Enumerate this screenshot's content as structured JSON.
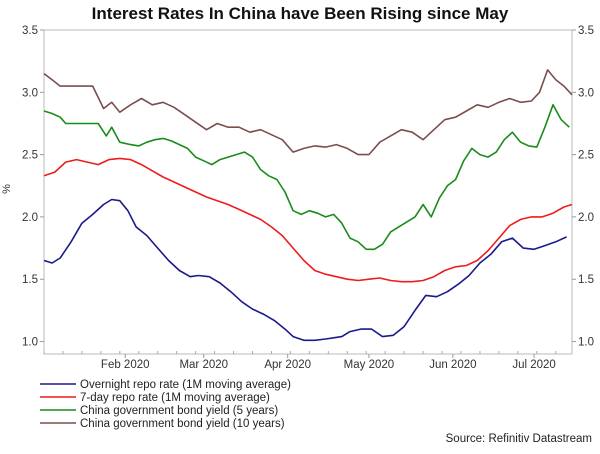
{
  "chart_data": {
    "type": "line",
    "title": "Interest Rates In China have Been Rising since May",
    "ylabel": "%",
    "ylim": [
      0.9,
      3.5
    ],
    "yticks": [
      1.0,
      1.5,
      2.0,
      2.5,
      3.0,
      3.5
    ],
    "ytick_labels": [
      "1.0",
      "1.5",
      "2.0",
      "2.5",
      "3.0",
      "3.5"
    ],
    "xlim": [
      "2020-01-02",
      "2020-07-15"
    ],
    "xtick_labels": [
      {
        "label": "Feb 2020",
        "date": "2020-02-01"
      },
      {
        "label": "Mar 2020",
        "date": "2020-03-01"
      },
      {
        "label": "Apr 2020",
        "date": "2020-04-01"
      },
      {
        "label": "May 2020",
        "date": "2020-05-01"
      },
      {
        "label": "Jun 2020",
        "date": "2020-06-01"
      },
      {
        "label": "Jul 2020",
        "date": "2020-07-01"
      }
    ],
    "grid": false,
    "source": "Source: Refinitiv Datastream",
    "series": [
      {
        "name": "Overnight repo rate (1M moving average)",
        "color": "#1a1a8c",
        "x": [
          "2020-01-02",
          "2020-01-05",
          "2020-01-08",
          "2020-01-12",
          "2020-01-16",
          "2020-01-20",
          "2020-01-24",
          "2020-01-27",
          "2020-01-30",
          "2020-02-02",
          "2020-02-05",
          "2020-02-09",
          "2020-02-13",
          "2020-02-17",
          "2020-02-21",
          "2020-02-25",
          "2020-02-28",
          "2020-03-03",
          "2020-03-07",
          "2020-03-11",
          "2020-03-15",
          "2020-03-19",
          "2020-03-23",
          "2020-03-27",
          "2020-03-31",
          "2020-04-03",
          "2020-04-07",
          "2020-04-11",
          "2020-04-15",
          "2020-04-18",
          "2020-04-21",
          "2020-04-24",
          "2020-04-28",
          "2020-05-02",
          "2020-05-06",
          "2020-05-10",
          "2020-05-14",
          "2020-05-18",
          "2020-05-22",
          "2020-05-26",
          "2020-05-30",
          "2020-06-03",
          "2020-06-07",
          "2020-06-11",
          "2020-06-15",
          "2020-06-19",
          "2020-06-23",
          "2020-06-27",
          "2020-07-01",
          "2020-07-05",
          "2020-07-09",
          "2020-07-13"
        ],
        "y": [
          1.65,
          1.63,
          1.67,
          1.8,
          1.95,
          2.02,
          2.1,
          2.14,
          2.13,
          2.05,
          1.92,
          1.85,
          1.75,
          1.65,
          1.57,
          1.52,
          1.53,
          1.52,
          1.47,
          1.4,
          1.32,
          1.26,
          1.22,
          1.17,
          1.1,
          1.04,
          1.01,
          1.01,
          1.02,
          1.03,
          1.04,
          1.08,
          1.1,
          1.1,
          1.04,
          1.05,
          1.12,
          1.25,
          1.37,
          1.36,
          1.4,
          1.46,
          1.53,
          1.63,
          1.7,
          1.8,
          1.83,
          1.75,
          1.74,
          1.77,
          1.8,
          1.84
        ]
      },
      {
        "name": "7-day repo rate (1M moving average)",
        "color": "#ee1c1c",
        "x": [
          "2020-01-02",
          "2020-01-06",
          "2020-01-10",
          "2020-01-14",
          "2020-01-18",
          "2020-01-22",
          "2020-01-26",
          "2020-01-30",
          "2020-02-03",
          "2020-02-07",
          "2020-02-11",
          "2020-02-15",
          "2020-02-19",
          "2020-02-23",
          "2020-02-27",
          "2020-03-02",
          "2020-03-06",
          "2020-03-10",
          "2020-03-14",
          "2020-03-18",
          "2020-03-22",
          "2020-03-26",
          "2020-03-30",
          "2020-04-03",
          "2020-04-07",
          "2020-04-11",
          "2020-04-15",
          "2020-04-19",
          "2020-04-23",
          "2020-04-27",
          "2020-05-01",
          "2020-05-05",
          "2020-05-09",
          "2020-05-13",
          "2020-05-17",
          "2020-05-21",
          "2020-05-25",
          "2020-05-29",
          "2020-06-02",
          "2020-06-06",
          "2020-06-10",
          "2020-06-14",
          "2020-06-18",
          "2020-06-22",
          "2020-06-26",
          "2020-06-30",
          "2020-07-04",
          "2020-07-08",
          "2020-07-12",
          "2020-07-15"
        ],
        "y": [
          2.33,
          2.36,
          2.44,
          2.46,
          2.44,
          2.42,
          2.46,
          2.47,
          2.46,
          2.42,
          2.37,
          2.32,
          2.28,
          2.24,
          2.2,
          2.16,
          2.13,
          2.1,
          2.06,
          2.02,
          1.98,
          1.92,
          1.85,
          1.75,
          1.65,
          1.57,
          1.54,
          1.52,
          1.5,
          1.49,
          1.5,
          1.51,
          1.49,
          1.48,
          1.48,
          1.49,
          1.52,
          1.57,
          1.6,
          1.61,
          1.65,
          1.73,
          1.83,
          1.93,
          1.98,
          2.0,
          2.0,
          2.03,
          2.08,
          2.1
        ]
      },
      {
        "name": "China government bond yield (5 years)",
        "color": "#1a8c1a",
        "x": [
          "2020-01-02",
          "2020-01-05",
          "2020-01-08",
          "2020-01-10",
          "2020-01-14",
          "2020-01-18",
          "2020-01-22",
          "2020-01-25",
          "2020-01-27",
          "2020-01-30",
          "2020-02-03",
          "2020-02-06",
          "2020-02-09",
          "2020-02-12",
          "2020-02-15",
          "2020-02-18",
          "2020-02-21",
          "2020-02-24",
          "2020-02-27",
          "2020-03-01",
          "2020-03-04",
          "2020-03-07",
          "2020-03-10",
          "2020-03-13",
          "2020-03-16",
          "2020-03-19",
          "2020-03-22",
          "2020-03-25",
          "2020-03-28",
          "2020-03-31",
          "2020-04-03",
          "2020-04-06",
          "2020-04-09",
          "2020-04-12",
          "2020-04-15",
          "2020-04-18",
          "2020-04-21",
          "2020-04-24",
          "2020-04-27",
          "2020-04-30",
          "2020-05-03",
          "2020-05-06",
          "2020-05-09",
          "2020-05-12",
          "2020-05-15",
          "2020-05-18",
          "2020-05-21",
          "2020-05-24",
          "2020-05-27",
          "2020-05-30",
          "2020-06-02",
          "2020-06-05",
          "2020-06-08",
          "2020-06-11",
          "2020-06-14",
          "2020-06-17",
          "2020-06-20",
          "2020-06-23",
          "2020-06-26",
          "2020-06-29",
          "2020-07-02",
          "2020-07-05",
          "2020-07-08",
          "2020-07-11",
          "2020-07-14"
        ],
        "y": [
          2.85,
          2.83,
          2.8,
          2.75,
          2.75,
          2.75,
          2.75,
          2.65,
          2.72,
          2.6,
          2.58,
          2.57,
          2.6,
          2.62,
          2.63,
          2.61,
          2.58,
          2.55,
          2.48,
          2.45,
          2.42,
          2.46,
          2.48,
          2.5,
          2.52,
          2.48,
          2.38,
          2.33,
          2.3,
          2.2,
          2.05,
          2.02,
          2.05,
          2.03,
          2.0,
          2.02,
          1.95,
          1.83,
          1.8,
          1.74,
          1.74,
          1.78,
          1.88,
          1.92,
          1.96,
          2.0,
          2.1,
          2.0,
          2.15,
          2.25,
          2.3,
          2.45,
          2.55,
          2.5,
          2.48,
          2.52,
          2.62,
          2.68,
          2.6,
          2.57,
          2.56,
          2.72,
          2.9,
          2.78,
          2.72
        ]
      },
      {
        "name": "China government bond yield (10 years)",
        "color": "#7a4e4e",
        "x": [
          "2020-01-02",
          "2020-01-05",
          "2020-01-08",
          "2020-01-12",
          "2020-01-16",
          "2020-01-20",
          "2020-01-24",
          "2020-01-27",
          "2020-01-30",
          "2020-02-03",
          "2020-02-07",
          "2020-02-11",
          "2020-02-15",
          "2020-02-19",
          "2020-02-23",
          "2020-02-27",
          "2020-03-02",
          "2020-03-06",
          "2020-03-10",
          "2020-03-14",
          "2020-03-18",
          "2020-03-22",
          "2020-03-26",
          "2020-03-30",
          "2020-04-03",
          "2020-04-07",
          "2020-04-11",
          "2020-04-15",
          "2020-04-19",
          "2020-04-23",
          "2020-04-27",
          "2020-05-01",
          "2020-05-05",
          "2020-05-09",
          "2020-05-13",
          "2020-05-17",
          "2020-05-21",
          "2020-05-25",
          "2020-05-29",
          "2020-06-02",
          "2020-06-06",
          "2020-06-10",
          "2020-06-14",
          "2020-06-18",
          "2020-06-22",
          "2020-06-26",
          "2020-06-30",
          "2020-07-03",
          "2020-07-06",
          "2020-07-09",
          "2020-07-12",
          "2020-07-15"
        ],
        "y": [
          3.15,
          3.1,
          3.05,
          3.05,
          3.05,
          3.05,
          2.87,
          2.92,
          2.84,
          2.9,
          2.95,
          2.9,
          2.92,
          2.88,
          2.82,
          2.76,
          2.7,
          2.75,
          2.72,
          2.72,
          2.68,
          2.7,
          2.66,
          2.62,
          2.52,
          2.55,
          2.57,
          2.56,
          2.58,
          2.55,
          2.5,
          2.5,
          2.6,
          2.65,
          2.7,
          2.68,
          2.62,
          2.7,
          2.78,
          2.8,
          2.85,
          2.9,
          2.88,
          2.92,
          2.95,
          2.92,
          2.93,
          3.0,
          3.18,
          3.1,
          3.05,
          2.98
        ]
      }
    ]
  }
}
